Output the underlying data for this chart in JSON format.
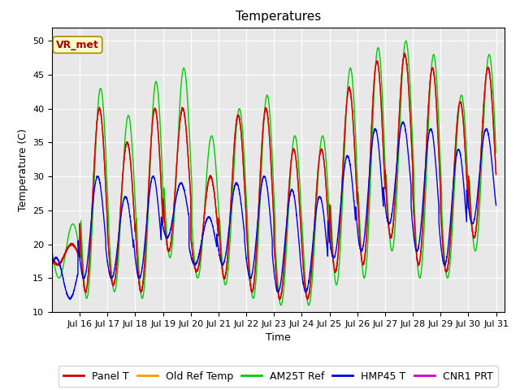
{
  "title": "Temperatures",
  "xlabel": "Time",
  "ylabel": "Temperature (C)",
  "ylim": [
    10,
    52
  ],
  "xlim_days": [
    15.0,
    31.3
  ],
  "series_colors": {
    "Panel T": "#cc0000",
    "Old Ref Temp": "#ff9900",
    "AM25T Ref": "#00cc00",
    "HMP45 T": "#0000dd",
    "CNR1 PRT": "#cc00cc"
  },
  "annotation_text": "VR_met",
  "annotation_color": "#aa0000",
  "annotation_bg": "#ffffcc",
  "annotation_border": "#aa8800",
  "background_color": "#e8e8e8",
  "grid_color": "#ffffff",
  "title_fontsize": 11,
  "label_fontsize": 9,
  "tick_fontsize": 8,
  "legend_fontsize": 9,
  "line_width": 1.0,
  "daily_min_base": [
    17,
    13,
    14,
    13,
    19,
    16,
    15,
    13,
    12,
    12,
    16,
    17,
    21,
    17,
    16,
    21,
    21
  ],
  "daily_max_base": [
    20,
    40,
    35,
    40,
    40,
    30,
    39,
    40,
    34,
    34,
    43,
    47,
    48,
    46,
    41,
    46,
    46
  ],
  "green_extra_max": [
    3,
    3,
    4,
    4,
    6,
    6,
    1,
    2,
    2,
    2,
    3,
    2,
    2,
    2,
    1,
    2,
    2
  ],
  "green_extra_min": [
    -2,
    -1,
    -1,
    -1,
    -1,
    -1,
    -1,
    -1,
    -1,
    -1,
    -2,
    -2,
    -2,
    -2,
    -1,
    -2,
    -2
  ],
  "blue_max_reduction": [
    8,
    10,
    8,
    10,
    11,
    6,
    10,
    10,
    6,
    7,
    10,
    10,
    10,
    9,
    7,
    9,
    9
  ],
  "blue_min_add": [
    1,
    2,
    1,
    2,
    2,
    1,
    2,
    2,
    1,
    1,
    2,
    2,
    2,
    2,
    1,
    2,
    2
  ],
  "samples_per_day": 288
}
